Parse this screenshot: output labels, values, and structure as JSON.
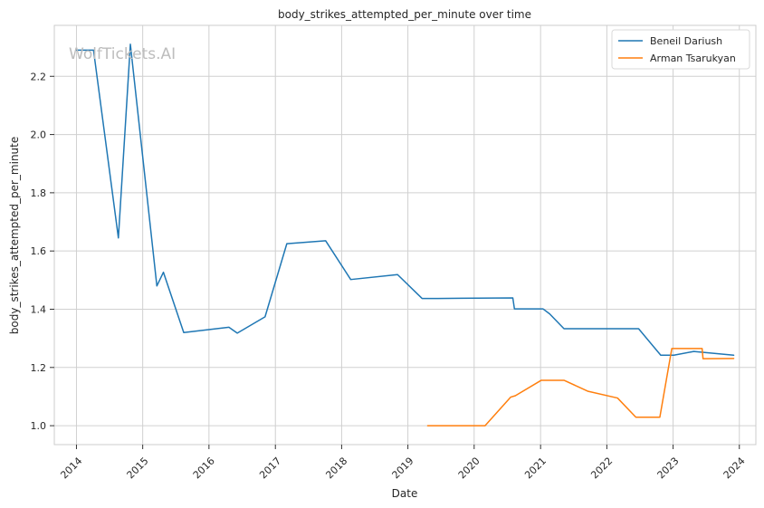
{
  "chart_data": {
    "type": "line",
    "title": "body_strikes_attempted_per_minute over time",
    "xlabel": "Date",
    "ylabel": "body_strikes_attempted_per_minute",
    "watermark": "WolfTickets.AI",
    "xlim": [
      "2013-09-01",
      "2024-04-01"
    ],
    "ylim": [
      0.935,
      2.375
    ],
    "x_ticks": [
      "2014",
      "2015",
      "2016",
      "2017",
      "2018",
      "2019",
      "2020",
      "2021",
      "2022",
      "2023",
      "2024"
    ],
    "y_ticks": [
      "1.0",
      "1.2",
      "1.4",
      "1.6",
      "1.8",
      "2.0",
      "2.2"
    ],
    "grid": true,
    "legend_position": "top-right",
    "series": [
      {
        "name": "Beneil Dariush",
        "color": "#1f77b4",
        "points": [
          {
            "x": "2014-01-01",
            "y": 2.29
          },
          {
            "x": "2014-04-05",
            "y": 2.29
          },
          {
            "x": "2014-08-20",
            "y": 1.645
          },
          {
            "x": "2014-10-25",
            "y": 2.31
          },
          {
            "x": "2015-03-20",
            "y": 1.48
          },
          {
            "x": "2015-04-25",
            "y": 1.527
          },
          {
            "x": "2015-08-15",
            "y": 1.32
          },
          {
            "x": "2016-04-20",
            "y": 1.338
          },
          {
            "x": "2016-06-05",
            "y": 1.318
          },
          {
            "x": "2016-11-05",
            "y": 1.374
          },
          {
            "x": "2017-03-05",
            "y": 1.625
          },
          {
            "x": "2017-10-05",
            "y": 1.635
          },
          {
            "x": "2018-02-20",
            "y": 1.502
          },
          {
            "x": "2018-11-05",
            "y": 1.519
          },
          {
            "x": "2019-03-20",
            "y": 1.437
          },
          {
            "x": "2019-06-15",
            "y": 1.437
          },
          {
            "x": "2020-08-01",
            "y": 1.439
          },
          {
            "x": "2020-08-10",
            "y": 1.401
          },
          {
            "x": "2021-01-15",
            "y": 1.401
          },
          {
            "x": "2021-02-20",
            "y": 1.384
          },
          {
            "x": "2021-05-10",
            "y": 1.333
          },
          {
            "x": "2022-06-25",
            "y": 1.333
          },
          {
            "x": "2022-10-25",
            "y": 1.242
          },
          {
            "x": "2023-01-05",
            "y": 1.242
          },
          {
            "x": "2023-04-25",
            "y": 1.255
          },
          {
            "x": "2023-12-01",
            "y": 1.242
          }
        ]
      },
      {
        "name": "Arman Tsarukyan",
        "color": "#ff7f0e",
        "points": [
          {
            "x": "2019-04-20",
            "y": 1.0
          },
          {
            "x": "2020-03-01",
            "y": 1.0
          },
          {
            "x": "2020-07-20",
            "y": 1.098
          },
          {
            "x": "2020-08-15",
            "y": 1.103
          },
          {
            "x": "2021-01-05",
            "y": 1.156
          },
          {
            "x": "2021-05-10",
            "y": 1.156
          },
          {
            "x": "2021-09-20",
            "y": 1.118
          },
          {
            "x": "2022-03-01",
            "y": 1.095
          },
          {
            "x": "2022-06-10",
            "y": 1.029
          },
          {
            "x": "2022-10-20",
            "y": 1.029
          },
          {
            "x": "2022-12-25",
            "y": 1.265
          },
          {
            "x": "2023-06-10",
            "y": 1.265
          },
          {
            "x": "2023-06-15",
            "y": 1.23
          },
          {
            "x": "2023-12-01",
            "y": 1.231
          }
        ]
      }
    ]
  }
}
